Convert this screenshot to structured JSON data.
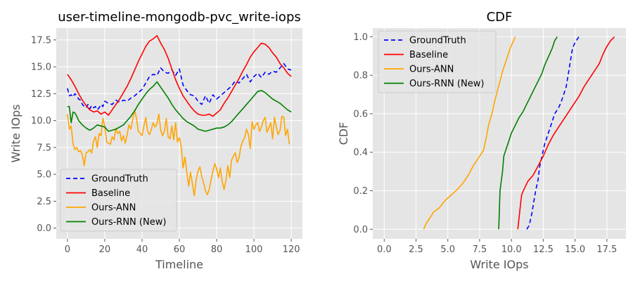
{
  "chart_data": [
    {
      "type": "line",
      "title": "user-timeline-mongodb-pvc_write-iops",
      "xlabel": "Timeline",
      "ylabel": "Write IOps",
      "xlim": [
        -6,
        126
      ],
      "ylim": [
        -1,
        18.6
      ],
      "xticks": [
        0,
        20,
        40,
        60,
        80,
        100,
        120
      ],
      "xtick_labels": [
        "0",
        "20",
        "40",
        "60",
        "80",
        "100",
        "120"
      ],
      "yticks": [
        0,
        2.5,
        5,
        7.5,
        10,
        12.5,
        15,
        17.5
      ],
      "ytick_labels": [
        "0.0",
        "2.5",
        "5.0",
        "7.5",
        "10.0",
        "12.5",
        "15.0",
        "17.5"
      ],
      "grid": true,
      "legend_position": "lower-left",
      "series": [
        {
          "name": "GroundTruth",
          "color": "#0000ff",
          "dash": "dashed",
          "x": [
            0,
            1,
            2,
            3,
            4,
            5,
            6,
            7,
            8,
            9,
            10,
            11,
            12,
            13,
            14,
            15,
            16,
            17,
            18,
            19,
            20,
            22,
            24,
            26,
            28,
            30,
            32,
            34,
            36,
            38,
            40,
            42,
            44,
            46,
            48,
            50,
            52,
            54,
            56,
            58,
            60,
            62,
            64,
            66,
            68,
            70,
            72,
            74,
            76,
            78,
            80,
            82,
            84,
            86,
            88,
            90,
            92,
            94,
            96,
            98,
            100,
            102,
            104,
            106,
            108,
            110,
            112,
            114,
            116,
            118,
            120
          ],
          "y": [
            13.0,
            12.3,
            12.4,
            12.2,
            12.5,
            12.3,
            12.0,
            11.9,
            11.5,
            11.3,
            11.2,
            11.5,
            11.1,
            11.4,
            11.2,
            11.3,
            11.0,
            11.2,
            11.5,
            11.3,
            11.8,
            11.6,
            11.5,
            11.9,
            11.7,
            11.9,
            11.8,
            12.1,
            12.3,
            12.6,
            12.9,
            13.5,
            14.1,
            14.3,
            14.2,
            14.9,
            14.5,
            14.4,
            14.7,
            14.2,
            14.8,
            13.3,
            12.8,
            12.4,
            12.3,
            11.8,
            11.5,
            12.3,
            11.6,
            12.4,
            12.0,
            12.3,
            12.6,
            12.9,
            13.2,
            13.7,
            13.5,
            13.9,
            14.3,
            13.6,
            14.1,
            14.4,
            14.0,
            14.5,
            14.3,
            14.6,
            14.5,
            14.9,
            15.3,
            14.8,
            14.7
          ]
        },
        {
          "name": "Baseline",
          "color": "#ff0000",
          "dash": "solid",
          "x": [
            0,
            2,
            4,
            6,
            8,
            10,
            12,
            14,
            16,
            18,
            20,
            22,
            24,
            26,
            28,
            30,
            32,
            34,
            36,
            38,
            40,
            42,
            44,
            46,
            48,
            50,
            52,
            54,
            56,
            58,
            60,
            62,
            64,
            66,
            68,
            70,
            72,
            74,
            76,
            78,
            80,
            82,
            84,
            86,
            88,
            90,
            92,
            94,
            96,
            98,
            100,
            102,
            104,
            106,
            108,
            110,
            112,
            114,
            116,
            118,
            120
          ],
          "y": [
            14.3,
            13.8,
            13.2,
            12.5,
            11.9,
            11.4,
            11.0,
            10.8,
            10.9,
            10.6,
            10.8,
            10.5,
            11.0,
            11.5,
            12.0,
            12.6,
            13.2,
            13.9,
            14.7,
            15.5,
            16.2,
            16.9,
            17.4,
            17.6,
            17.9,
            17.2,
            16.6,
            15.8,
            14.8,
            13.8,
            13.0,
            12.3,
            11.8,
            11.3,
            10.9,
            10.6,
            10.5,
            10.5,
            10.6,
            10.4,
            10.7,
            11.0,
            11.6,
            12.1,
            12.7,
            13.3,
            13.9,
            14.6,
            15.2,
            15.9,
            16.4,
            16.8,
            17.2,
            17.1,
            16.8,
            16.3,
            15.9,
            15.3,
            14.9,
            14.4,
            14.1
          ]
        },
        {
          "name": "Ours-ANN",
          "color": "#ffa500",
          "dash": "solid",
          "x": [
            0,
            1,
            2,
            3,
            4,
            5,
            6,
            7,
            8,
            9,
            10,
            11,
            12,
            13,
            14,
            15,
            16,
            17,
            18,
            19,
            20,
            21,
            22,
            23,
            24,
            25,
            26,
            27,
            28,
            29,
            30,
            31,
            32,
            33,
            34,
            35,
            36,
            37,
            38,
            39,
            40,
            41,
            42,
            43,
            44,
            45,
            46,
            47,
            48,
            49,
            50,
            51,
            52,
            53,
            54,
            55,
            56,
            57,
            58,
            59,
            60,
            61,
            62,
            63,
            64,
            65,
            66,
            67,
            68,
            69,
            70,
            71,
            72,
            73,
            74,
            75,
            76,
            77,
            78,
            79,
            80,
            81,
            82,
            83,
            84,
            85,
            86,
            87,
            88,
            89,
            90,
            91,
            92,
            93,
            94,
            95,
            96,
            97,
            98,
            99,
            100,
            101,
            102,
            103,
            104,
            105,
            106,
            107,
            108,
            109,
            110,
            111,
            112,
            113,
            114,
            115,
            116,
            117,
            118,
            119
          ],
          "y": [
            10.6,
            9.2,
            9.5,
            7.8,
            7.3,
            7.5,
            7.1,
            7.2,
            6.8,
            5.8,
            7.0,
            7.1,
            7.3,
            7.0,
            8.1,
            8.5,
            7.5,
            8.8,
            8.6,
            10.2,
            9.5,
            8.0,
            7.9,
            7.8,
            8.5,
            8.2,
            9.3,
            8.8,
            9.0,
            8.1,
            8.6,
            7.9,
            8.7,
            9.6,
            9.2,
            10.1,
            11.0,
            10.2,
            9.0,
            8.8,
            8.6,
            9.5,
            10.3,
            9.0,
            8.7,
            9.2,
            9.8,
            9.4,
            9.7,
            10.6,
            9.1,
            8.6,
            9.0,
            10.2,
            8.5,
            8.3,
            9.5,
            8.2,
            9.8,
            8.0,
            8.4,
            7.6,
            5.6,
            6.6,
            5.2,
            3.9,
            5.2,
            4.1,
            3.0,
            4.5,
            5.3,
            5.7,
            4.8,
            4.2,
            3.5,
            3.1,
            3.6,
            4.5,
            5.3,
            6.0,
            5.5,
            4.7,
            5.6,
            4.3,
            3.6,
            4.5,
            5.8,
            4.7,
            6.3,
            6.7,
            7.0,
            6.1,
            6.5,
            7.6,
            8.1,
            8.4,
            9.2,
            8.7,
            7.4,
            9.9,
            9.2,
            9.6,
            9.8,
            9.0,
            9.4,
            10.0,
            10.3,
            8.9,
            9.3,
            9.8,
            8.3,
            10.3,
            9.4,
            8.7,
            9.1,
            10.4,
            10.3,
            8.6,
            9.2,
            7.8
          ]
        },
        {
          "name": "Ours-RNN (New)",
          "color": "#008000",
          "dash": "solid",
          "x": [
            0,
            1,
            2,
            3,
            4,
            5,
            6,
            8,
            10,
            12,
            14,
            16,
            18,
            20,
            22,
            24,
            26,
            28,
            30,
            32,
            34,
            36,
            38,
            40,
            42,
            44,
            46,
            48,
            50,
            52,
            54,
            56,
            58,
            60,
            62,
            64,
            66,
            68,
            70,
            72,
            74,
            76,
            78,
            80,
            82,
            84,
            86,
            88,
            90,
            92,
            94,
            96,
            98,
            100,
            102,
            104,
            106,
            108,
            110,
            112,
            114,
            116,
            118,
            120
          ],
          "y": [
            11.3,
            11.3,
            9.8,
            10.8,
            10.7,
            10.4,
            10.0,
            9.6,
            9.3,
            9.1,
            9.3,
            9.6,
            9.5,
            9.4,
            9.0,
            9.1,
            9.2,
            9.4,
            9.6,
            10.0,
            10.4,
            10.9,
            11.5,
            12.0,
            12.5,
            12.9,
            13.2,
            13.6,
            13.1,
            12.6,
            12.1,
            11.5,
            11.0,
            10.6,
            10.2,
            9.9,
            9.7,
            9.5,
            9.2,
            9.1,
            9.0,
            9.1,
            9.2,
            9.3,
            9.3,
            9.4,
            9.6,
            9.9,
            10.3,
            10.7,
            11.1,
            11.5,
            11.9,
            12.3,
            12.7,
            12.8,
            12.6,
            12.3,
            12.0,
            11.8,
            11.6,
            11.3,
            11.0,
            10.8
          ]
        }
      ]
    },
    {
      "type": "line",
      "title": "CDF",
      "xlabel": "Write IOps",
      "ylabel": "CDF",
      "xlim": [
        -0.9,
        19.0
      ],
      "ylim": [
        -0.05,
        1.045
      ],
      "xticks": [
        0,
        2.5,
        5,
        7.5,
        10,
        12.5,
        15,
        17.5
      ],
      "xtick_labels": [
        "0.0",
        "2.5",
        "5.0",
        "7.5",
        "10.0",
        "12.5",
        "15.0",
        "17.5"
      ],
      "yticks": [
        0,
        0.2,
        0.4,
        0.6,
        0.8,
        1.0
      ],
      "ytick_labels": [
        "0.0",
        "0.2",
        "0.4",
        "0.6",
        "0.8",
        "1.0"
      ],
      "grid": true,
      "legend_position": "top-left",
      "series": [
        {
          "name": "GroundTruth",
          "color": "#0000ff",
          "dash": "dashed",
          "x": [
            11.2,
            11.4,
            11.6,
            11.7,
            11.9,
            12.1,
            12.2,
            12.4,
            12.6,
            12.8,
            13.0,
            13.2,
            13.4,
            13.7,
            13.9,
            14.1,
            14.3,
            14.4,
            14.5,
            14.6,
            14.7,
            14.8,
            15.0,
            15.3
          ],
          "y": [
            0.0,
            0.02,
            0.08,
            0.12,
            0.2,
            0.26,
            0.32,
            0.38,
            0.44,
            0.48,
            0.52,
            0.56,
            0.6,
            0.63,
            0.66,
            0.7,
            0.74,
            0.78,
            0.82,
            0.86,
            0.9,
            0.94,
            0.97,
            1.0
          ]
        },
        {
          "name": "Baseline",
          "color": "#ff0000",
          "dash": "solid",
          "x": [
            10.5,
            10.6,
            10.7,
            10.8,
            11.0,
            11.3,
            11.7,
            12.1,
            12.5,
            12.9,
            13.3,
            13.7,
            14.1,
            14.5,
            14.9,
            15.3,
            15.7,
            16.1,
            16.5,
            16.9,
            17.2,
            17.5,
            17.8,
            18.1
          ],
          "y": [
            0.0,
            0.06,
            0.12,
            0.18,
            0.21,
            0.25,
            0.28,
            0.33,
            0.38,
            0.44,
            0.49,
            0.53,
            0.57,
            0.61,
            0.65,
            0.69,
            0.74,
            0.78,
            0.82,
            0.86,
            0.91,
            0.95,
            0.98,
            1.0
          ]
        },
        {
          "name": "Ours-ANN",
          "color": "#ffa500",
          "dash": "solid",
          "x": [
            3.1,
            3.3,
            3.6,
            3.9,
            4.3,
            4.8,
            5.3,
            5.8,
            6.2,
            6.6,
            7.0,
            7.4,
            7.8,
            8.0,
            8.2,
            8.5,
            8.7,
            8.9,
            9.1,
            9.3,
            9.5,
            9.7,
            9.9,
            10.1,
            10.3
          ],
          "y": [
            0.0,
            0.03,
            0.06,
            0.09,
            0.11,
            0.15,
            0.18,
            0.21,
            0.24,
            0.28,
            0.33,
            0.37,
            0.41,
            0.47,
            0.54,
            0.61,
            0.67,
            0.72,
            0.77,
            0.82,
            0.86,
            0.9,
            0.94,
            0.97,
            1.0
          ]
        },
        {
          "name": "Ours-RNN (New)",
          "color": "#008000",
          "dash": "solid",
          "x": [
            9.0,
            9.05,
            9.1,
            9.2,
            9.3,
            9.4,
            9.6,
            9.8,
            10.0,
            10.3,
            10.6,
            10.9,
            11.2,
            11.5,
            11.8,
            12.1,
            12.4,
            12.6,
            12.8,
            13.0,
            13.2,
            13.4,
            13.6
          ],
          "y": [
            0.0,
            0.1,
            0.2,
            0.25,
            0.3,
            0.38,
            0.42,
            0.46,
            0.5,
            0.54,
            0.58,
            0.61,
            0.65,
            0.69,
            0.73,
            0.77,
            0.81,
            0.85,
            0.88,
            0.91,
            0.94,
            0.98,
            1.0
          ]
        }
      ]
    }
  ]
}
